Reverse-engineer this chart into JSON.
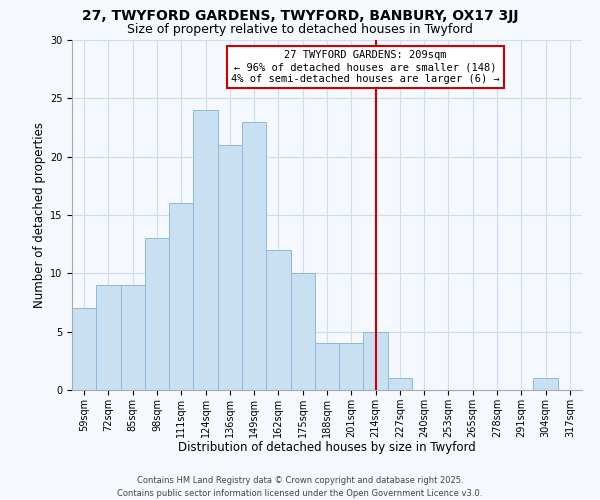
{
  "title": "27, TWYFORD GARDENS, TWYFORD, BANBURY, OX17 3JJ",
  "subtitle": "Size of property relative to detached houses in Twyford",
  "xlabel": "Distribution of detached houses by size in Twyford",
  "ylabel": "Number of detached properties",
  "bins": [
    "59sqm",
    "72sqm",
    "85sqm",
    "98sqm",
    "111sqm",
    "124sqm",
    "136sqm",
    "149sqm",
    "162sqm",
    "175sqm",
    "188sqm",
    "201sqm",
    "214sqm",
    "227sqm",
    "240sqm",
    "253sqm",
    "265sqm",
    "278sqm",
    "291sqm",
    "304sqm",
    "317sqm"
  ],
  "values": [
    7,
    9,
    9,
    13,
    16,
    24,
    21,
    23,
    12,
    10,
    4,
    4,
    5,
    1,
    0,
    0,
    0,
    0,
    0,
    1,
    0
  ],
  "bar_color": "#c9dff2",
  "bar_edge_color": "#8bbade",
  "vline_x_index": 12.0,
  "vline_color": "#cc0000",
  "ylim": [
    0,
    30
  ],
  "yticks": [
    0,
    5,
    10,
    15,
    20,
    25,
    30
  ],
  "annotation_title": "27 TWYFORD GARDENS: 209sqm",
  "annotation_line1": "← 96% of detached houses are smaller (148)",
  "annotation_line2": "4% of semi-detached houses are larger (6) →",
  "grid_color": "#ccdff0",
  "background_color": "#f5f8fd",
  "footer_line1": "Contains HM Land Registry data © Crown copyright and database right 2025.",
  "footer_line2": "Contains public sector information licensed under the Open Government Licence v3.0.",
  "title_fontsize": 10,
  "subtitle_fontsize": 9,
  "label_fontsize": 8.5,
  "tick_fontsize": 7,
  "annot_fontsize": 7.5
}
